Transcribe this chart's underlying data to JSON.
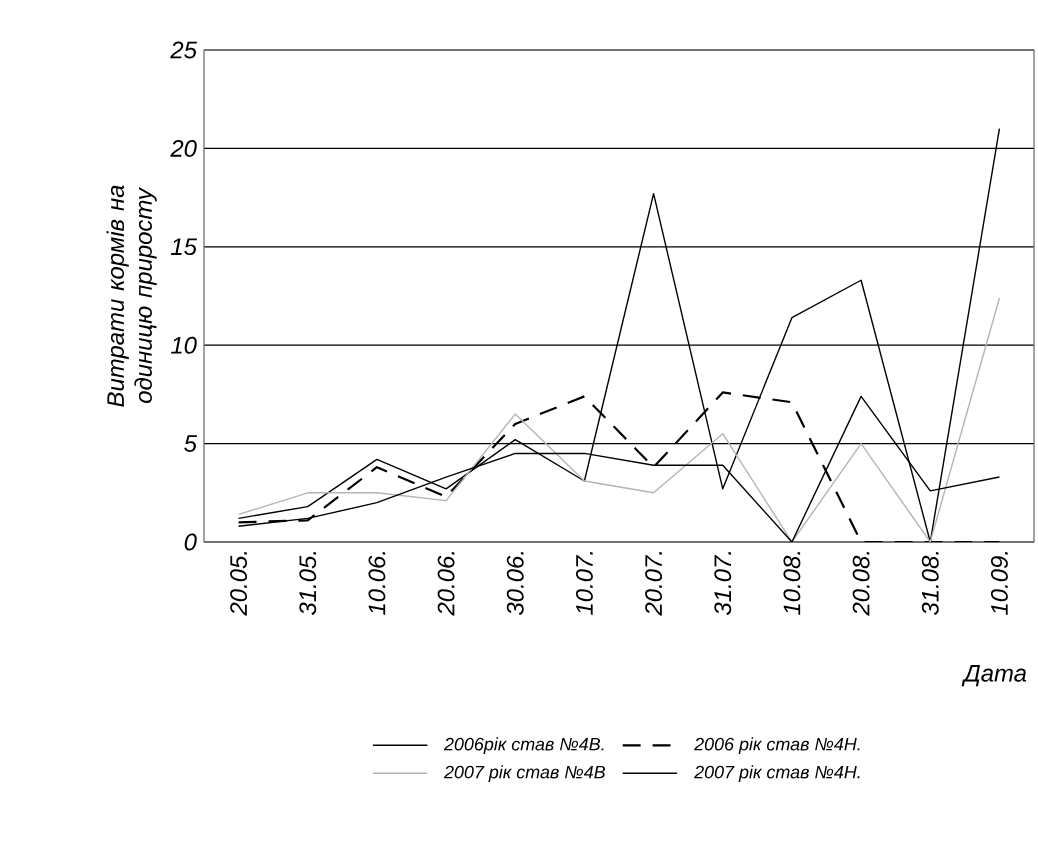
{
  "chart_data": {
    "type": "line",
    "ylabel": "Витрати кормів на одиницю приросту",
    "xlabel": "Дата",
    "categories": [
      "20.05.",
      "31.05.",
      "10.06.",
      "20.06.",
      "30.06.",
      "10.07.",
      "20.07.",
      "31.07.",
      "10.08.",
      "20.08.",
      "31.08.",
      "10.09."
    ],
    "series": [
      {
        "name": "2006рік став №4В.",
        "color": "#000000",
        "line_style": "solid",
        "values": [
          1.2,
          1.8,
          4.2,
          2.7,
          5.2,
          3.1,
          17.7,
          2.7,
          11.4,
          13.3,
          0,
          21.0
        ]
      },
      {
        "name": "2006 рік став №4Н.",
        "color": "#000000",
        "line_style": "dashed",
        "values": [
          1.0,
          1.1,
          3.8,
          2.3,
          6.0,
          7.4,
          3.8,
          7.6,
          7.1,
          0,
          0,
          0
        ]
      },
      {
        "name": "2007 рік став №4В",
        "color": "#b4b4b4",
        "line_style": "solid",
        "values": [
          1.4,
          2.5,
          2.5,
          2.1,
          6.5,
          3.1,
          2.5,
          5.5,
          0,
          5.0,
          0,
          12.4
        ]
      },
      {
        "name": "2007 рік став №4Н.",
        "color": "#000000",
        "line_style": "solid",
        "values": [
          0.8,
          1.2,
          2.0,
          3.3,
          4.5,
          4.5,
          3.9,
          3.9,
          0,
          7.4,
          2.6,
          3.3
        ]
      }
    ],
    "ylim": [
      0,
      25
    ],
    "yticks": [
      0,
      5,
      10,
      15,
      20,
      25
    ],
    "grid": "y",
    "legend": "bottom",
    "marker": "none"
  }
}
